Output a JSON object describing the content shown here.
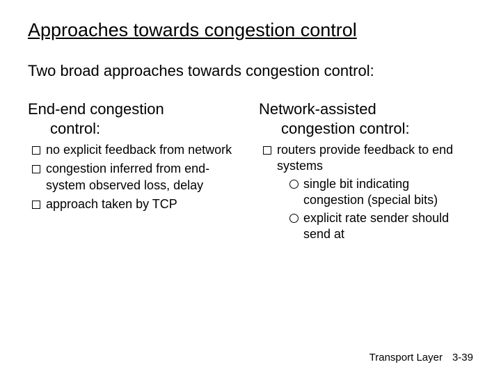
{
  "title": "Approaches towards congestion control",
  "subtitle": "Two broad approaches towards congestion control:",
  "left": {
    "heading_line1": "End-end congestion",
    "heading_line2": "control:",
    "items": [
      "no explicit feedback from network",
      "congestion inferred from end-system observed loss, delay",
      "approach taken by TCP"
    ]
  },
  "right": {
    "heading_line1": "Network-assisted",
    "heading_line2": "congestion control:",
    "items": [
      {
        "text": "routers provide feedback to end systems",
        "sub": [
          "single bit indicating congestion (special bits)",
          "explicit rate sender should send at"
        ]
      }
    ]
  },
  "footer": {
    "section": "Transport Layer",
    "page": "3-39"
  }
}
